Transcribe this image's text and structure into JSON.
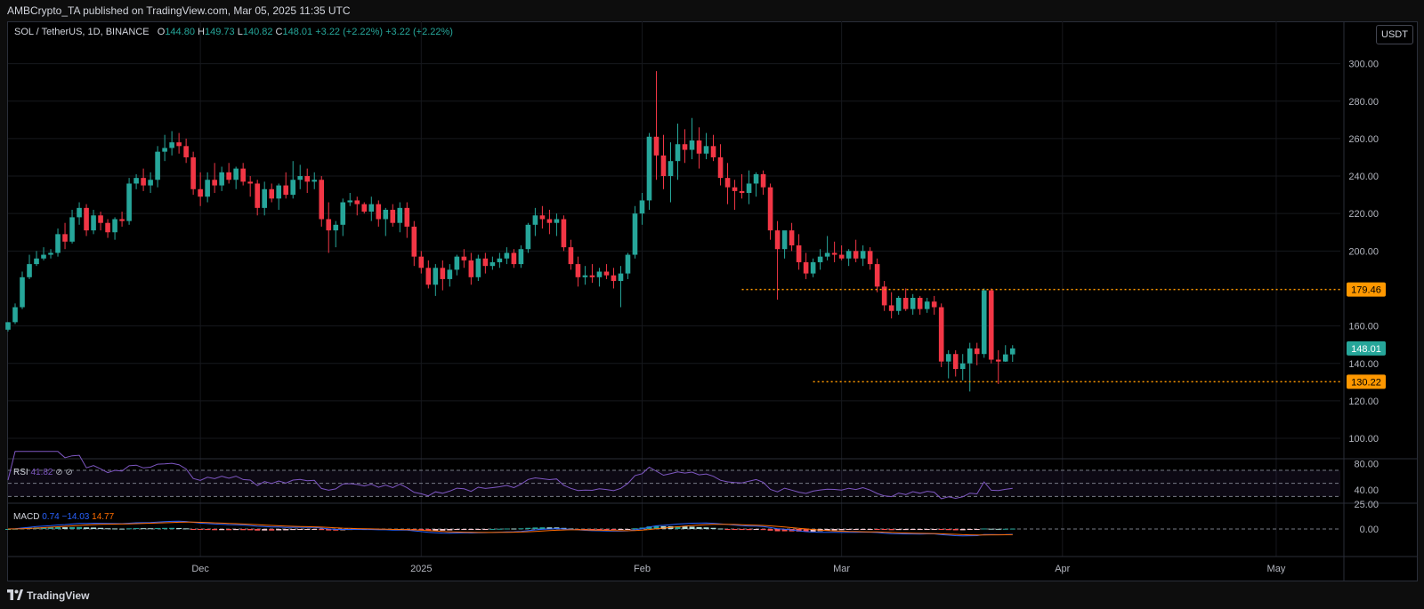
{
  "header": {
    "published_by": "AMBCrypto_TA published on TradingView.com, Mar 05, 2025 11:35 UTC"
  },
  "legend": {
    "symbol": "SOL / TetherUS, 1D, BINANCE",
    "open_label": "O",
    "open": "144.80",
    "high_label": "H",
    "high": "149.73",
    "low_label": "L",
    "low": "140.82",
    "close_label": "C",
    "close": "148.01",
    "change": "+3.22 (+2.22%)",
    "change2": "+3.22 (+2.22%)"
  },
  "currency_button": "USDT",
  "rsi": {
    "label": "RSI",
    "value": "41.82",
    "icons": "⊘ ⊘",
    "axis_labels": [
      "80.00",
      "40.00"
    ]
  },
  "macd": {
    "label": "MACD",
    "macd_value": "0.74",
    "signal_value": "−14.03",
    "hist_value": "14.77",
    "axis_labels": [
      "25.00",
      "0.00"
    ]
  },
  "colors": {
    "up": "#26a69a",
    "down": "#f23645",
    "level_line": "#ff9800",
    "rsi_line": "#7e57c2",
    "macd_line": "#2962ff",
    "signal_line": "#ff6d00"
  },
  "footer": {
    "brand": "TradingView"
  },
  "chart_data": {
    "type": "candlestick",
    "title": "SOL / TetherUS, 1D, BINANCE",
    "y_ticks": [
      100,
      120,
      140,
      160,
      200,
      220,
      240,
      260,
      280,
      300
    ],
    "y_tick_labels": [
      "100.00",
      "120.00",
      "140.00",
      "160.00",
      "200.00",
      "220.00",
      "240.00",
      "260.00",
      "280.00",
      "300.00"
    ],
    "ylim": [
      91,
      315
    ],
    "x_labels": [
      "Dec",
      "2025",
      "Feb",
      "Mar",
      "Apr",
      "May"
    ],
    "x_label_dates": [
      "2024-12-01",
      "2025-01-01",
      "2025-02-01",
      "2025-03-01",
      "2025-04-01",
      "2025-05-01"
    ],
    "xlim": [
      "2024-11-04",
      "2025-05-10"
    ],
    "levels": [
      {
        "value": 179.46,
        "label": "179.46",
        "from": "2025-02-15"
      },
      {
        "value": 130.22,
        "label": "130.22",
        "from": "2025-02-25"
      }
    ],
    "last_price": {
      "value": 148.01,
      "label": "148.01"
    },
    "candles": [
      {
        "d": "2024-11-04",
        "o": 158,
        "h": 162,
        "l": 157,
        "c": 162
      },
      {
        "d": "2024-11-05",
        "o": 162,
        "h": 172,
        "l": 161,
        "c": 170
      },
      {
        "d": "2024-11-06",
        "o": 170,
        "h": 189,
        "l": 169,
        "c": 186
      },
      {
        "d": "2024-11-07",
        "o": 186,
        "h": 198,
        "l": 185,
        "c": 193
      },
      {
        "d": "2024-11-08",
        "o": 193,
        "h": 200,
        "l": 192,
        "c": 196
      },
      {
        "d": "2024-11-09",
        "o": 196,
        "h": 202,
        "l": 195,
        "c": 198
      },
      {
        "d": "2024-11-10",
        "o": 198,
        "h": 201,
        "l": 196,
        "c": 199
      },
      {
        "d": "2024-11-11",
        "o": 199,
        "h": 212,
        "l": 197,
        "c": 209
      },
      {
        "d": "2024-11-12",
        "o": 209,
        "h": 215,
        "l": 201,
        "c": 205
      },
      {
        "d": "2024-11-13",
        "o": 205,
        "h": 222,
        "l": 204,
        "c": 218
      },
      {
        "d": "2024-11-14",
        "o": 218,
        "h": 226,
        "l": 214,
        "c": 223
      },
      {
        "d": "2024-11-15",
        "o": 223,
        "h": 225,
        "l": 208,
        "c": 211
      },
      {
        "d": "2024-11-16",
        "o": 211,
        "h": 222,
        "l": 209,
        "c": 219
      },
      {
        "d": "2024-11-17",
        "o": 219,
        "h": 221,
        "l": 211,
        "c": 215
      },
      {
        "d": "2024-11-18",
        "o": 215,
        "h": 217,
        "l": 207,
        "c": 210
      },
      {
        "d": "2024-11-19",
        "o": 210,
        "h": 218,
        "l": 206,
        "c": 217
      },
      {
        "d": "2024-11-20",
        "o": 217,
        "h": 221,
        "l": 213,
        "c": 216
      },
      {
        "d": "2024-11-21",
        "o": 216,
        "h": 239,
        "l": 214,
        "c": 236
      },
      {
        "d": "2024-11-22",
        "o": 236,
        "h": 241,
        "l": 233,
        "c": 239
      },
      {
        "d": "2024-11-23",
        "o": 239,
        "h": 244,
        "l": 232,
        "c": 235
      },
      {
        "d": "2024-11-24",
        "o": 235,
        "h": 242,
        "l": 231,
        "c": 238
      },
      {
        "d": "2024-11-25",
        "o": 238,
        "h": 256,
        "l": 234,
        "c": 253
      },
      {
        "d": "2024-11-26",
        "o": 253,
        "h": 262,
        "l": 248,
        "c": 255
      },
      {
        "d": "2024-11-27",
        "o": 255,
        "h": 264,
        "l": 251,
        "c": 258
      },
      {
        "d": "2024-11-28",
        "o": 258,
        "h": 263,
        "l": 252,
        "c": 256
      },
      {
        "d": "2024-11-29",
        "o": 256,
        "h": 260,
        "l": 247,
        "c": 250
      },
      {
        "d": "2024-11-30",
        "o": 250,
        "h": 253,
        "l": 230,
        "c": 233
      },
      {
        "d": "2024-12-01",
        "o": 233,
        "h": 242,
        "l": 224,
        "c": 229
      },
      {
        "d": "2024-12-02",
        "o": 229,
        "h": 242,
        "l": 226,
        "c": 238
      },
      {
        "d": "2024-12-03",
        "o": 238,
        "h": 247,
        "l": 231,
        "c": 235
      },
      {
        "d": "2024-12-04",
        "o": 235,
        "h": 245,
        "l": 232,
        "c": 242
      },
      {
        "d": "2024-12-05",
        "o": 242,
        "h": 247,
        "l": 236,
        "c": 238
      },
      {
        "d": "2024-12-06",
        "o": 238,
        "h": 245,
        "l": 233,
        "c": 244
      },
      {
        "d": "2024-12-07",
        "o": 244,
        "h": 247,
        "l": 235,
        "c": 237
      },
      {
        "d": "2024-12-08",
        "o": 237,
        "h": 240,
        "l": 229,
        "c": 236
      },
      {
        "d": "2024-12-09",
        "o": 236,
        "h": 238,
        "l": 219,
        "c": 223
      },
      {
        "d": "2024-12-10",
        "o": 223,
        "h": 237,
        "l": 219,
        "c": 233
      },
      {
        "d": "2024-12-11",
        "o": 233,
        "h": 236,
        "l": 226,
        "c": 228
      },
      {
        "d": "2024-12-12",
        "o": 228,
        "h": 236,
        "l": 222,
        "c": 235
      },
      {
        "d": "2024-12-13",
        "o": 235,
        "h": 242,
        "l": 228,
        "c": 230
      },
      {
        "d": "2024-12-14",
        "o": 230,
        "h": 248,
        "l": 228,
        "c": 238
      },
      {
        "d": "2024-12-15",
        "o": 238,
        "h": 246,
        "l": 233,
        "c": 240
      },
      {
        "d": "2024-12-16",
        "o": 240,
        "h": 244,
        "l": 231,
        "c": 237
      },
      {
        "d": "2024-12-17",
        "o": 237,
        "h": 242,
        "l": 233,
        "c": 238
      },
      {
        "d": "2024-12-18",
        "o": 238,
        "h": 240,
        "l": 213,
        "c": 217
      },
      {
        "d": "2024-12-19",
        "o": 217,
        "h": 226,
        "l": 199,
        "c": 211
      },
      {
        "d": "2024-12-20",
        "o": 211,
        "h": 216,
        "l": 202,
        "c": 214
      },
      {
        "d": "2024-12-21",
        "o": 214,
        "h": 228,
        "l": 208,
        "c": 226
      },
      {
        "d": "2024-12-22",
        "o": 226,
        "h": 231,
        "l": 224,
        "c": 227
      },
      {
        "d": "2024-12-23",
        "o": 227,
        "h": 229,
        "l": 219,
        "c": 225
      },
      {
        "d": "2024-12-24",
        "o": 225,
        "h": 226,
        "l": 220,
        "c": 221
      },
      {
        "d": "2024-12-25",
        "o": 221,
        "h": 229,
        "l": 216,
        "c": 225
      },
      {
        "d": "2024-12-26",
        "o": 225,
        "h": 227,
        "l": 213,
        "c": 217
      },
      {
        "d": "2024-12-27",
        "o": 217,
        "h": 223,
        "l": 208,
        "c": 222
      },
      {
        "d": "2024-12-28",
        "o": 222,
        "h": 225,
        "l": 213,
        "c": 215
      },
      {
        "d": "2024-12-29",
        "o": 215,
        "h": 226,
        "l": 210,
        "c": 223
      },
      {
        "d": "2024-12-30",
        "o": 223,
        "h": 226,
        "l": 207,
        "c": 213
      },
      {
        "d": "2024-12-31",
        "o": 213,
        "h": 216,
        "l": 192,
        "c": 197
      },
      {
        "d": "2025-01-01",
        "o": 197,
        "h": 200,
        "l": 188,
        "c": 191
      },
      {
        "d": "2025-01-02",
        "o": 191,
        "h": 195,
        "l": 180,
        "c": 182
      },
      {
        "d": "2025-01-03",
        "o": 182,
        "h": 193,
        "l": 176,
        "c": 191
      },
      {
        "d": "2025-01-04",
        "o": 191,
        "h": 195,
        "l": 179,
        "c": 185
      },
      {
        "d": "2025-01-05",
        "o": 185,
        "h": 193,
        "l": 181,
        "c": 190
      },
      {
        "d": "2025-01-06",
        "o": 190,
        "h": 198,
        "l": 187,
        "c": 197
      },
      {
        "d": "2025-01-07",
        "o": 197,
        "h": 201,
        "l": 191,
        "c": 195
      },
      {
        "d": "2025-01-08",
        "o": 195,
        "h": 199,
        "l": 182,
        "c": 186
      },
      {
        "d": "2025-01-09",
        "o": 186,
        "h": 198,
        "l": 184,
        "c": 196
      },
      {
        "d": "2025-01-10",
        "o": 196,
        "h": 199,
        "l": 188,
        "c": 192
      },
      {
        "d": "2025-01-11",
        "o": 192,
        "h": 197,
        "l": 190,
        "c": 194
      },
      {
        "d": "2025-01-12",
        "o": 194,
        "h": 199,
        "l": 191,
        "c": 196
      },
      {
        "d": "2025-01-13",
        "o": 196,
        "h": 202,
        "l": 193,
        "c": 199
      },
      {
        "d": "2025-01-14",
        "o": 199,
        "h": 201,
        "l": 191,
        "c": 193
      },
      {
        "d": "2025-01-15",
        "o": 193,
        "h": 203,
        "l": 191,
        "c": 201
      },
      {
        "d": "2025-01-16",
        "o": 201,
        "h": 215,
        "l": 199,
        "c": 214
      },
      {
        "d": "2025-01-17",
        "o": 214,
        "h": 223,
        "l": 208,
        "c": 219
      },
      {
        "d": "2025-01-18",
        "o": 219,
        "h": 224,
        "l": 212,
        "c": 217
      },
      {
        "d": "2025-01-19",
        "o": 217,
        "h": 222,
        "l": 209,
        "c": 215
      },
      {
        "d": "2025-01-20",
        "o": 215,
        "h": 220,
        "l": 208,
        "c": 217
      },
      {
        "d": "2025-01-21",
        "o": 217,
        "h": 219,
        "l": 200,
        "c": 202
      },
      {
        "d": "2025-01-22",
        "o": 202,
        "h": 206,
        "l": 190,
        "c": 193
      },
      {
        "d": "2025-01-23",
        "o": 193,
        "h": 197,
        "l": 181,
        "c": 186
      },
      {
        "d": "2025-01-24",
        "o": 186,
        "h": 192,
        "l": 182,
        "c": 187
      },
      {
        "d": "2025-01-25",
        "o": 187,
        "h": 193,
        "l": 183,
        "c": 186
      },
      {
        "d": "2025-01-26",
        "o": 186,
        "h": 191,
        "l": 181,
        "c": 189
      },
      {
        "d": "2025-01-27",
        "o": 189,
        "h": 193,
        "l": 185,
        "c": 187
      },
      {
        "d": "2025-01-28",
        "o": 187,
        "h": 191,
        "l": 180,
        "c": 184
      },
      {
        "d": "2025-01-29",
        "o": 184,
        "h": 192,
        "l": 170,
        "c": 188
      },
      {
        "d": "2025-01-30",
        "o": 188,
        "h": 199,
        "l": 185,
        "c": 198
      },
      {
        "d": "2025-01-31",
        "o": 198,
        "h": 224,
        "l": 196,
        "c": 220
      },
      {
        "d": "2025-02-01",
        "o": 220,
        "h": 231,
        "l": 214,
        "c": 227
      },
      {
        "d": "2025-02-02",
        "o": 227,
        "h": 263,
        "l": 222,
        "c": 261
      },
      {
        "d": "2025-02-03",
        "o": 261,
        "h": 296,
        "l": 238,
        "c": 251
      },
      {
        "d": "2025-02-04",
        "o": 251,
        "h": 262,
        "l": 233,
        "c": 240
      },
      {
        "d": "2025-02-05",
        "o": 240,
        "h": 258,
        "l": 226,
        "c": 248
      },
      {
        "d": "2025-02-06",
        "o": 248,
        "h": 268,
        "l": 238,
        "c": 257
      },
      {
        "d": "2025-02-07",
        "o": 257,
        "h": 265,
        "l": 247,
        "c": 254
      },
      {
        "d": "2025-02-08",
        "o": 254,
        "h": 271,
        "l": 249,
        "c": 259
      },
      {
        "d": "2025-02-09",
        "o": 259,
        "h": 266,
        "l": 244,
        "c": 252
      },
      {
        "d": "2025-02-10",
        "o": 252,
        "h": 263,
        "l": 249,
        "c": 256
      },
      {
        "d": "2025-02-11",
        "o": 256,
        "h": 262,
        "l": 248,
        "c": 250
      },
      {
        "d": "2025-02-12",
        "o": 250,
        "h": 257,
        "l": 235,
        "c": 239
      },
      {
        "d": "2025-02-13",
        "o": 239,
        "h": 247,
        "l": 225,
        "c": 234
      },
      {
        "d": "2025-02-14",
        "o": 234,
        "h": 238,
        "l": 222,
        "c": 232
      },
      {
        "d": "2025-02-15",
        "o": 232,
        "h": 241,
        "l": 228,
        "c": 231
      },
      {
        "d": "2025-02-16",
        "o": 231,
        "h": 243,
        "l": 225,
        "c": 236
      },
      {
        "d": "2025-02-17",
        "o": 236,
        "h": 242,
        "l": 229,
        "c": 241
      },
      {
        "d": "2025-02-18",
        "o": 241,
        "h": 243,
        "l": 230,
        "c": 234
      },
      {
        "d": "2025-02-19",
        "o": 234,
        "h": 236,
        "l": 206,
        "c": 211
      },
      {
        "d": "2025-02-20",
        "o": 211,
        "h": 216,
        "l": 174,
        "c": 201
      },
      {
        "d": "2025-02-21",
        "o": 201,
        "h": 210,
        "l": 196,
        "c": 211
      },
      {
        "d": "2025-02-22",
        "o": 211,
        "h": 215,
        "l": 200,
        "c": 203
      },
      {
        "d": "2025-02-23",
        "o": 203,
        "h": 209,
        "l": 190,
        "c": 194
      },
      {
        "d": "2025-02-24",
        "o": 194,
        "h": 199,
        "l": 185,
        "c": 188
      },
      {
        "d": "2025-02-25",
        "o": 188,
        "h": 196,
        "l": 186,
        "c": 194
      },
      {
        "d": "2025-02-26",
        "o": 194,
        "h": 201,
        "l": 190,
        "c": 197
      },
      {
        "d": "2025-02-27",
        "o": 197,
        "h": 208,
        "l": 195,
        "c": 199
      },
      {
        "d": "2025-02-28",
        "o": 199,
        "h": 205,
        "l": 194,
        "c": 198
      },
      {
        "d": "2025-03-01",
        "o": 198,
        "h": 203,
        "l": 195,
        "c": 196
      },
      {
        "d": "2025-03-02",
        "o": 196,
        "h": 201,
        "l": 192,
        "c": 200
      },
      {
        "d": "2025-03-03",
        "o": 200,
        "h": 206,
        "l": 194,
        "c": 196
      },
      {
        "d": "2025-03-04",
        "o": 196,
        "h": 203,
        "l": 192,
        "c": 200
      },
      {
        "d": "2025-03-05",
        "o": 200,
        "h": 202,
        "l": 190,
        "c": 193
      },
      {
        "d": "2025-03-06",
        "o": 193,
        "h": 196,
        "l": 178,
        "c": 181
      },
      {
        "d": "2025-03-07",
        "o": 181,
        "h": 184,
        "l": 168,
        "c": 171
      },
      {
        "d": "2025-03-08",
        "o": 171,
        "h": 178,
        "l": 164,
        "c": 168
      },
      {
        "d": "2025-03-09",
        "o": 168,
        "h": 176,
        "l": 166,
        "c": 175
      },
      {
        "d": "2025-03-10",
        "o": 175,
        "h": 180,
        "l": 168,
        "c": 169
      },
      {
        "d": "2025-03-11",
        "o": 169,
        "h": 177,
        "l": 166,
        "c": 175
      },
      {
        "d": "2025-03-12",
        "o": 175,
        "h": 176,
        "l": 166,
        "c": 169
      },
      {
        "d": "2025-03-13",
        "o": 169,
        "h": 175,
        "l": 167,
        "c": 173
      },
      {
        "d": "2025-03-14",
        "o": 173,
        "h": 176,
        "l": 166,
        "c": 170
      },
      {
        "d": "2025-03-15",
        "o": 170,
        "h": 172,
        "l": 138,
        "c": 141
      },
      {
        "d": "2025-03-16",
        "o": 141,
        "h": 147,
        "l": 132,
        "c": 145
      },
      {
        "d": "2025-03-17",
        "o": 145,
        "h": 147,
        "l": 133,
        "c": 137
      },
      {
        "d": "2025-03-18",
        "o": 137,
        "h": 145,
        "l": 131,
        "c": 140
      },
      {
        "d": "2025-03-19",
        "o": 140,
        "h": 151,
        "l": 125,
        "c": 148
      },
      {
        "d": "2025-03-20",
        "o": 148,
        "h": 151,
        "l": 139,
        "c": 145
      },
      {
        "d": "2025-03-21",
        "o": 145,
        "h": 180,
        "l": 143,
        "c": 179
      },
      {
        "d": "2025-03-22",
        "o": 179,
        "h": 180,
        "l": 140,
        "c": 142
      },
      {
        "d": "2025-03-23",
        "o": 142,
        "h": 147,
        "l": 129,
        "c": 141
      },
      {
        "d": "2025-03-24",
        "o": 141,
        "h": 149.73,
        "l": 140.82,
        "c": 144.8
      },
      {
        "d": "2025-03-25",
        "o": 144.8,
        "h": 149.73,
        "l": 140.82,
        "c": 148.01
      }
    ]
  }
}
